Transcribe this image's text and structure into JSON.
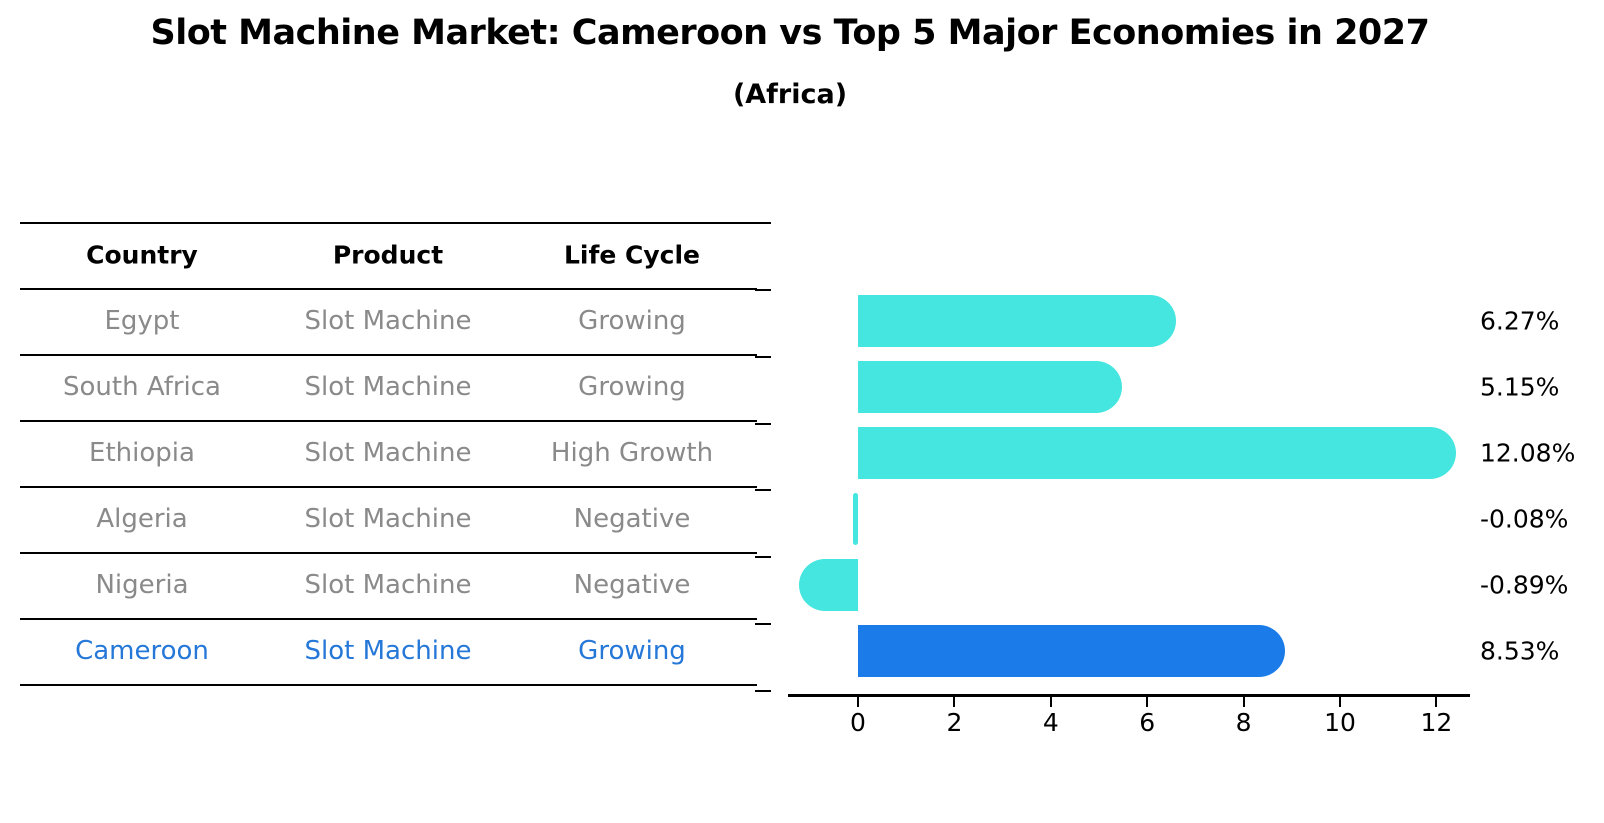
{
  "title": "Slot Machine Market: Cameroon vs Top 5 Major Economies in 2027",
  "subtitle": "(Africa)",
  "table": {
    "headers": [
      "Country",
      "Product",
      "Life Cycle"
    ],
    "rows": [
      {
        "country": "Egypt",
        "product": "Slot Machine",
        "life_cycle": "Growing",
        "highlight": false
      },
      {
        "country": "South Africa",
        "product": "Slot Machine",
        "life_cycle": "Growing",
        "highlight": false
      },
      {
        "country": "Ethiopia",
        "product": "Slot Machine",
        "life_cycle": "High Growth",
        "highlight": false
      },
      {
        "country": "Algeria",
        "product": "Slot Machine",
        "life_cycle": "Negative",
        "highlight": false
      },
      {
        "country": "Nigeria",
        "product": "Slot Machine",
        "life_cycle": "Negative",
        "highlight": false
      },
      {
        "country": "Cameroon",
        "product": "Slot Machine",
        "life_cycle": "Growing",
        "highlight": true
      }
    ]
  },
  "chart_data": {
    "type": "bar",
    "orientation": "horizontal",
    "title": "Slot Machine Market: Cameroon vs Top 5 Major Economies in 2027 (Africa)",
    "categories": [
      "Egypt",
      "South Africa",
      "Ethiopia",
      "Algeria",
      "Nigeria",
      "Cameroon"
    ],
    "values": [
      6.27,
      5.15,
      12.08,
      -0.08,
      -0.89,
      8.53
    ],
    "value_labels": [
      "6.27%",
      "5.15%",
      "12.08%",
      "-0.08%",
      "-0.89%",
      "8.53%"
    ],
    "units": "percent",
    "xticks": [
      "0",
      "2",
      "4",
      "6",
      "8",
      "10",
      "12"
    ],
    "xtick_values": [
      0,
      2,
      4,
      6,
      8,
      10,
      12
    ],
    "xlim": [
      -1.5,
      12.8
    ],
    "grid": false,
    "legend": false,
    "highlight_category": "Cameroon",
    "bar_color": "#45e6df",
    "highlight_color": "#1b7ce9",
    "highlight_edge_style": "dotted"
  },
  "colors": {
    "muted_text": "#8a8a8a",
    "highlight_text": "#2678d8",
    "axis": "#000000"
  }
}
